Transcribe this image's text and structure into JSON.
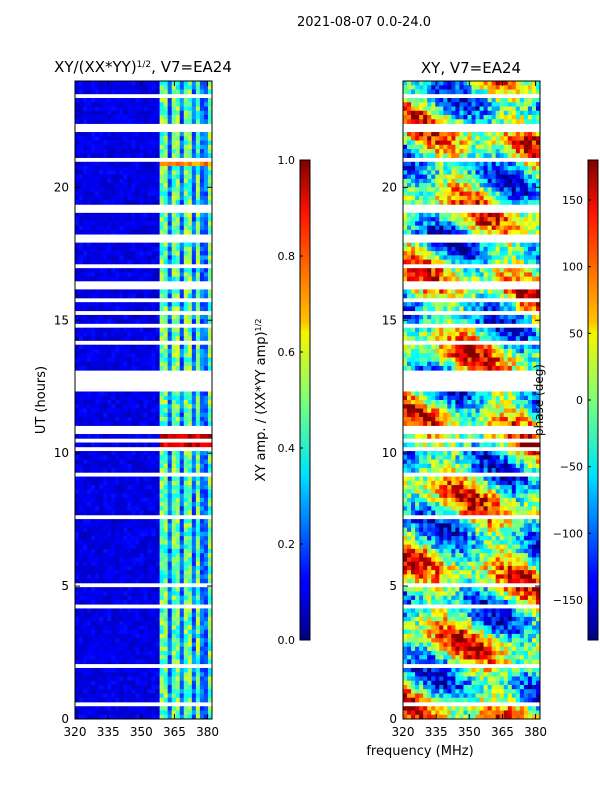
{
  "suptitle": "2021-08-07 0.0-24.0",
  "xlabel": "frequency (MHz)",
  "chart_data": [
    {
      "type": "heatmap",
      "title_main": "XY/(XX*YY)",
      "title_sup": "1/2",
      "title_rest": ", V7=EA24",
      "ylabel": "UT (hours)",
      "xlim": [
        320,
        382
      ],
      "xticks": [
        320,
        335,
        350,
        365,
        380
      ],
      "ylim": [
        0,
        24
      ],
      "yticks": [
        0,
        5,
        10,
        15,
        20
      ],
      "colorbar": {
        "label_main": "XY amp. / (XX*YY amp)",
        "label_sup": "1/2",
        "range": [
          0.0,
          1.0
        ],
        "ticks": [
          "0.0",
          "0.2",
          "0.4",
          "0.6",
          "0.8",
          "1.0"
        ],
        "tick_values": [
          0.0,
          0.2,
          0.4,
          0.6,
          0.8,
          1.0
        ]
      }
    },
    {
      "type": "heatmap",
      "title": "XY, V7=EA24",
      "xlim": [
        320,
        382
      ],
      "xticks": [
        320,
        335,
        350,
        365,
        380
      ],
      "ylim": [
        0,
        24
      ],
      "yticks": [
        0,
        5,
        10,
        15,
        20
      ],
      "colorbar": {
        "label": "phase (deg)",
        "range": [
          -180,
          180
        ],
        "ticks": [
          "150",
          "100",
          "50",
          "0",
          "−50",
          "−100",
          "−150"
        ],
        "tick_values": [
          150,
          100,
          50,
          0,
          -50,
          -100,
          -150
        ]
      }
    }
  ],
  "xtick_labels": [
    "320",
    "335",
    "350",
    "365",
    "380"
  ],
  "ytick_labels": [
    "0",
    "5",
    "10",
    "15",
    "20"
  ]
}
